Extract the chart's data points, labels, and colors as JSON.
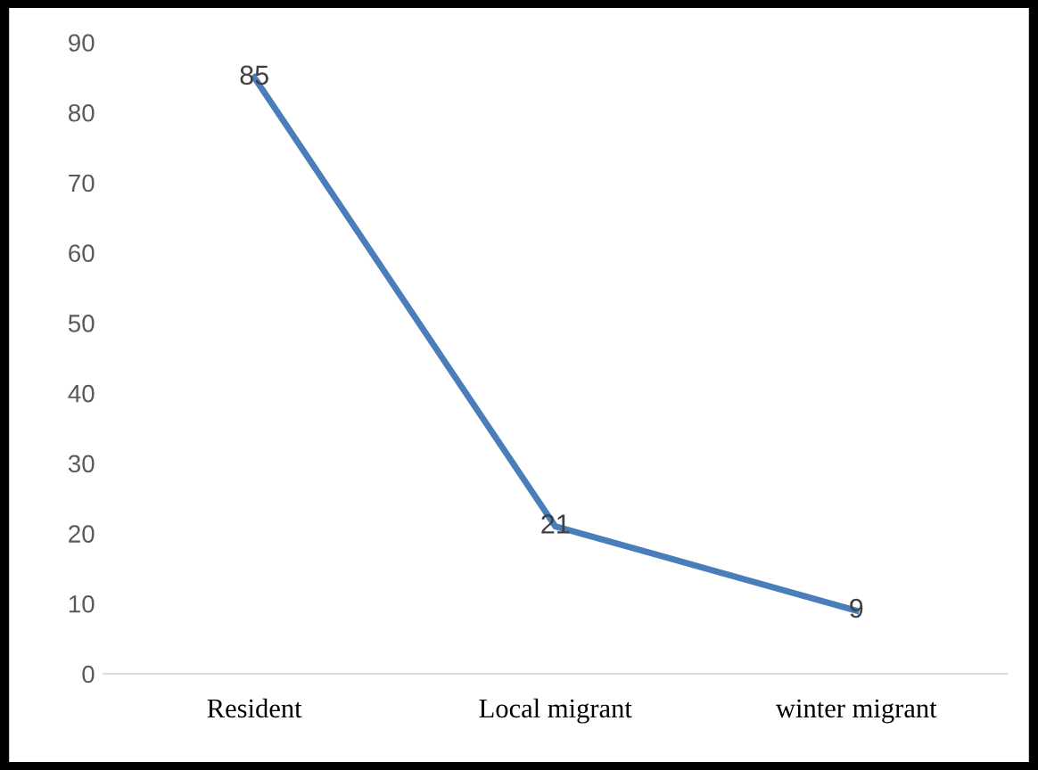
{
  "chart_data": {
    "type": "line",
    "categories": [
      "Resident",
      "Local migrant",
      "winter migrant"
    ],
    "series": [
      {
        "color": "#4a7ebb",
        "values": [
          85,
          21,
          9
        ]
      }
    ],
    "ylim": [
      0,
      90
    ],
    "yticks": [
      0,
      10,
      20,
      30,
      40,
      50,
      60,
      70,
      80,
      90
    ],
    "grid": false,
    "data_labels": true,
    "marker": "none",
    "line_style": "solid",
    "legend": false
  }
}
